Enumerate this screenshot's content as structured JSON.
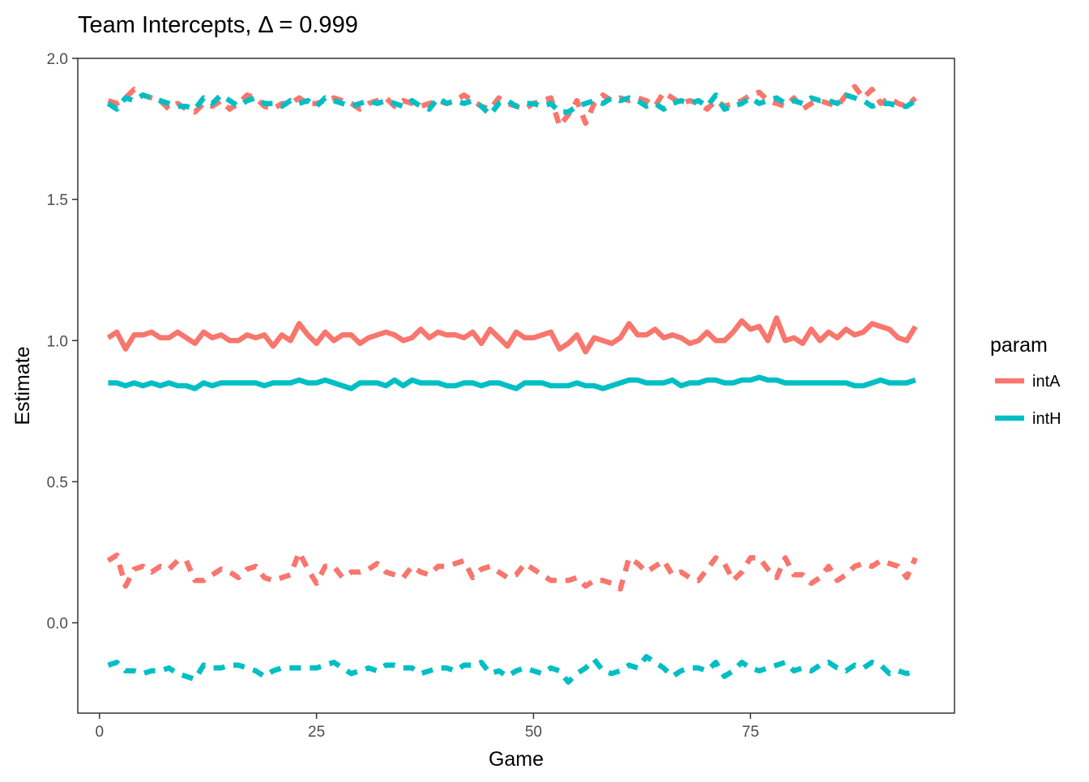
{
  "chart_data": {
    "type": "line",
    "title": "Team Intercepts, Δ = 0.999",
    "xlabel": "Game",
    "ylabel": "Estimate",
    "xlim": [
      -2.5,
      98.5
    ],
    "ylim": [
      -0.32,
      2.0
    ],
    "xticks": [
      0,
      25,
      50,
      75
    ],
    "xtick_labels": [
      "0",
      "25",
      "50",
      "75"
    ],
    "yticks": [
      0.0,
      0.5,
      1.0,
      1.5,
      2.0
    ],
    "ytick_labels": [
      "0.0",
      "0.5",
      "1.0",
      "1.5",
      "2.0"
    ],
    "grid": false,
    "legend": {
      "title": "param",
      "position": "right",
      "entries": [
        {
          "name": "intA",
          "color": "#F8766D"
        },
        {
          "name": "intH",
          "color": "#00BFC4"
        }
      ]
    },
    "series": [
      {
        "name": "intA",
        "color": "#F8766D",
        "linetype": "solid",
        "values": [
          1.01,
          1.03,
          0.97,
          1.02,
          1.02,
          1.03,
          1.01,
          1.01,
          1.03,
          1.01,
          0.99,
          1.03,
          1.01,
          1.02,
          1.0,
          1.0,
          1.02,
          1.01,
          1.02,
          0.98,
          1.02,
          1.0,
          1.06,
          1.02,
          0.99,
          1.03,
          1.0,
          1.02,
          1.02,
          0.99,
          1.01,
          1.02,
          1.03,
          1.02,
          1.0,
          1.01,
          1.04,
          1.01,
          1.03,
          1.02,
          1.02,
          1.01,
          1.03,
          0.99,
          1.04,
          1.01,
          0.98,
          1.03,
          1.01,
          1.01,
          1.02,
          1.03,
          0.97,
          0.99,
          1.02,
          0.96,
          1.01,
          1.0,
          0.99,
          1.01,
          1.06,
          1.02,
          1.02,
          1.04,
          1.01,
          1.02,
          1.01,
          0.99,
          1.0,
          1.03,
          1.0,
          1.0,
          1.03,
          1.07,
          1.04,
          1.05,
          1.0,
          1.08,
          1.0,
          1.01,
          0.99,
          1.04,
          1.0,
          1.03,
          1.01,
          1.04,
          1.02,
          1.03,
          1.06,
          1.05,
          1.04,
          1.01,
          1.0,
          1.05
        ]
      },
      {
        "name": "intH",
        "color": "#00BFC4",
        "linetype": "solid",
        "values": [
          0.85,
          0.85,
          0.84,
          0.85,
          0.84,
          0.85,
          0.84,
          0.85,
          0.84,
          0.84,
          0.83,
          0.85,
          0.84,
          0.85,
          0.85,
          0.85,
          0.85,
          0.85,
          0.84,
          0.85,
          0.85,
          0.85,
          0.86,
          0.85,
          0.85,
          0.86,
          0.85,
          0.84,
          0.83,
          0.85,
          0.85,
          0.85,
          0.84,
          0.86,
          0.84,
          0.86,
          0.85,
          0.85,
          0.85,
          0.84,
          0.84,
          0.85,
          0.85,
          0.84,
          0.85,
          0.85,
          0.84,
          0.83,
          0.85,
          0.85,
          0.85,
          0.84,
          0.84,
          0.84,
          0.85,
          0.84,
          0.84,
          0.83,
          0.84,
          0.85,
          0.86,
          0.86,
          0.85,
          0.85,
          0.85,
          0.86,
          0.84,
          0.85,
          0.85,
          0.86,
          0.86,
          0.85,
          0.85,
          0.86,
          0.86,
          0.87,
          0.86,
          0.86,
          0.85,
          0.85,
          0.85,
          0.85,
          0.85,
          0.85,
          0.85,
          0.85,
          0.84,
          0.84,
          0.85,
          0.86,
          0.85,
          0.85,
          0.85,
          0.86
        ]
      },
      {
        "name": "intA",
        "color": "#F8766D",
        "linetype": "dashed",
        "values": [
          1.85,
          1.84,
          1.86,
          1.89,
          1.87,
          1.86,
          1.85,
          1.82,
          1.84,
          1.82,
          1.81,
          1.84,
          1.83,
          1.85,
          1.82,
          1.84,
          1.87,
          1.86,
          1.83,
          1.82,
          1.84,
          1.84,
          1.86,
          1.84,
          1.84,
          1.85,
          1.86,
          1.85,
          1.84,
          1.82,
          1.84,
          1.85,
          1.86,
          1.83,
          1.85,
          1.84,
          1.83,
          1.84,
          1.85,
          1.84,
          1.85,
          1.87,
          1.85,
          1.83,
          1.82,
          1.86,
          1.84,
          1.83,
          1.82,
          1.84,
          1.85,
          1.86,
          1.76,
          1.8,
          1.85,
          1.77,
          1.84,
          1.87,
          1.85,
          1.86,
          1.85,
          1.86,
          1.85,
          1.83,
          1.88,
          1.86,
          1.84,
          1.85,
          1.84,
          1.82,
          1.85,
          1.83,
          1.84,
          1.85,
          1.87,
          1.88,
          1.85,
          1.84,
          1.83,
          1.86,
          1.82,
          1.84,
          1.85,
          1.84,
          1.83,
          1.87,
          1.9,
          1.86,
          1.89,
          1.84,
          1.86,
          1.84,
          1.83,
          1.86
        ]
      },
      {
        "name": "intH",
        "color": "#00BFC4",
        "linetype": "dashed",
        "values": [
          1.84,
          1.82,
          1.86,
          1.85,
          1.87,
          1.86,
          1.85,
          1.84,
          1.83,
          1.83,
          1.82,
          1.86,
          1.84,
          1.87,
          1.85,
          1.83,
          1.85,
          1.86,
          1.84,
          1.84,
          1.83,
          1.85,
          1.84,
          1.85,
          1.83,
          1.86,
          1.85,
          1.84,
          1.83,
          1.84,
          1.85,
          1.84,
          1.85,
          1.84,
          1.83,
          1.85,
          1.83,
          1.82,
          1.86,
          1.84,
          1.85,
          1.84,
          1.85,
          1.83,
          1.8,
          1.84,
          1.85,
          1.83,
          1.84,
          1.84,
          1.83,
          1.84,
          1.81,
          1.81,
          1.83,
          1.84,
          1.85,
          1.84,
          1.86,
          1.85,
          1.86,
          1.85,
          1.83,
          1.84,
          1.82,
          1.84,
          1.85,
          1.84,
          1.85,
          1.83,
          1.87,
          1.82,
          1.83,
          1.84,
          1.86,
          1.84,
          1.85,
          1.86,
          1.84,
          1.85,
          1.84,
          1.86,
          1.85,
          1.85,
          1.84,
          1.87,
          1.86,
          1.85,
          1.83,
          1.84,
          1.84,
          1.83,
          1.83,
          1.85
        ]
      },
      {
        "name": "intA",
        "color": "#F8766D",
        "linetype": "dashed",
        "values": [
          0.22,
          0.24,
          0.13,
          0.19,
          0.2,
          0.18,
          0.2,
          0.19,
          0.22,
          0.22,
          0.15,
          0.15,
          0.17,
          0.19,
          0.18,
          0.16,
          0.19,
          0.2,
          0.16,
          0.15,
          0.16,
          0.17,
          0.25,
          0.19,
          0.14,
          0.2,
          0.2,
          0.16,
          0.18,
          0.18,
          0.19,
          0.21,
          0.18,
          0.17,
          0.16,
          0.2,
          0.18,
          0.17,
          0.2,
          0.2,
          0.21,
          0.22,
          0.16,
          0.19,
          0.2,
          0.18,
          0.16,
          0.17,
          0.21,
          0.19,
          0.17,
          0.15,
          0.15,
          0.15,
          0.16,
          0.13,
          0.15,
          0.15,
          0.14,
          0.12,
          0.23,
          0.21,
          0.18,
          0.2,
          0.22,
          0.17,
          0.18,
          0.16,
          0.15,
          0.19,
          0.23,
          0.21,
          0.15,
          0.18,
          0.23,
          0.23,
          0.19,
          0.16,
          0.23,
          0.17,
          0.17,
          0.14,
          0.16,
          0.2,
          0.15,
          0.17,
          0.2,
          0.21,
          0.2,
          0.22,
          0.21,
          0.2,
          0.16,
          0.23
        ]
      },
      {
        "name": "intH",
        "color": "#00BFC4",
        "linetype": "dashed",
        "values": [
          -0.15,
          -0.14,
          -0.17,
          -0.17,
          -0.18,
          -0.17,
          -0.17,
          -0.16,
          -0.18,
          -0.19,
          -0.2,
          -0.15,
          -0.16,
          -0.16,
          -0.15,
          -0.15,
          -0.16,
          -0.17,
          -0.19,
          -0.17,
          -0.16,
          -0.16,
          -0.16,
          -0.16,
          -0.16,
          -0.15,
          -0.14,
          -0.16,
          -0.18,
          -0.17,
          -0.16,
          -0.17,
          -0.15,
          -0.15,
          -0.16,
          -0.16,
          -0.18,
          -0.17,
          -0.16,
          -0.16,
          -0.17,
          -0.15,
          -0.15,
          -0.14,
          -0.18,
          -0.17,
          -0.19,
          -0.17,
          -0.16,
          -0.17,
          -0.18,
          -0.16,
          -0.17,
          -0.21,
          -0.18,
          -0.16,
          -0.13,
          -0.17,
          -0.18,
          -0.17,
          -0.15,
          -0.16,
          -0.12,
          -0.14,
          -0.16,
          -0.19,
          -0.17,
          -0.16,
          -0.16,
          -0.17,
          -0.14,
          -0.19,
          -0.17,
          -0.14,
          -0.16,
          -0.17,
          -0.16,
          -0.15,
          -0.14,
          -0.17,
          -0.16,
          -0.17,
          -0.15,
          -0.14,
          -0.16,
          -0.17,
          -0.15,
          -0.16,
          -0.14,
          -0.15,
          -0.18,
          -0.17,
          -0.18,
          -0.17
        ]
      }
    ]
  }
}
